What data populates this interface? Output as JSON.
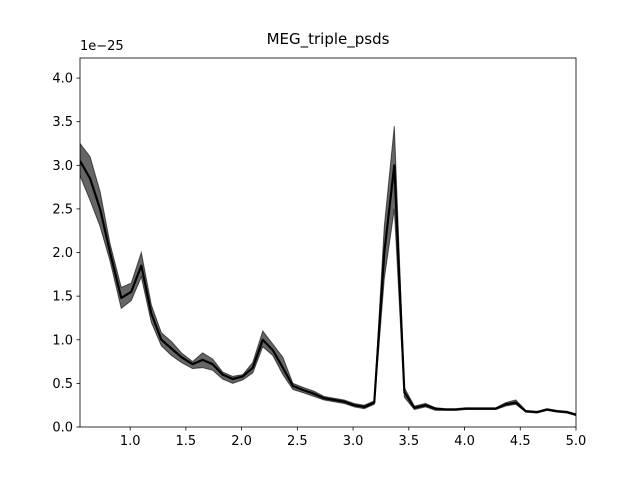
{
  "chart_data": {
    "type": "line",
    "title": "MEG_triple_psds",
    "y_offset_label": "1e−25",
    "x": [
      0.55,
      0.64,
      0.73,
      0.82,
      0.92,
      1.01,
      1.1,
      1.19,
      1.28,
      1.37,
      1.46,
      1.56,
      1.65,
      1.74,
      1.83,
      1.92,
      2.01,
      2.1,
      2.19,
      2.28,
      2.37,
      2.46,
      2.56,
      2.65,
      2.74,
      2.83,
      2.92,
      3.01,
      3.1,
      3.19,
      3.28,
      3.37,
      3.46,
      3.55,
      3.65,
      3.74,
      3.83,
      3.92,
      4.01,
      4.1,
      4.19,
      4.28,
      4.37,
      4.46,
      4.55,
      4.65,
      4.74,
      4.83,
      4.92,
      5.0
    ],
    "series": [
      {
        "color": "#000000",
        "values": [
          3.05,
          2.85,
          2.5,
          2.0,
          1.48,
          1.55,
          1.85,
          1.3,
          1.0,
          0.9,
          0.8,
          0.72,
          0.77,
          0.72,
          0.6,
          0.55,
          0.58,
          0.68,
          1.0,
          0.88,
          0.68,
          0.47,
          0.42,
          0.38,
          0.33,
          0.31,
          0.29,
          0.25,
          0.23,
          0.28,
          2.0,
          3.0,
          0.4,
          0.22,
          0.25,
          0.21,
          0.2,
          0.2,
          0.21,
          0.21,
          0.21,
          0.21,
          0.26,
          0.28,
          0.18,
          0.17,
          0.2,
          0.18,
          0.17,
          0.14
        ]
      }
    ],
    "band": {
      "color": "#000000",
      "alpha": 0.6,
      "upper": [
        3.25,
        3.1,
        2.7,
        2.1,
        1.6,
        1.65,
        2.0,
        1.4,
        1.08,
        0.98,
        0.85,
        0.75,
        0.85,
        0.78,
        0.63,
        0.58,
        0.6,
        0.74,
        1.1,
        0.95,
        0.8,
        0.5,
        0.45,
        0.41,
        0.35,
        0.33,
        0.31,
        0.27,
        0.25,
        0.3,
        2.3,
        3.45,
        0.45,
        0.24,
        0.27,
        0.22,
        0.21,
        0.21,
        0.22,
        0.22,
        0.22,
        0.22,
        0.28,
        0.31,
        0.19,
        0.18,
        0.21,
        0.19,
        0.18,
        0.15
      ],
      "lower": [
        2.88,
        2.6,
        2.3,
        1.9,
        1.36,
        1.45,
        1.72,
        1.2,
        0.93,
        0.82,
        0.74,
        0.67,
        0.68,
        0.65,
        0.55,
        0.5,
        0.54,
        0.62,
        0.92,
        0.82,
        0.6,
        0.43,
        0.39,
        0.35,
        0.31,
        0.29,
        0.27,
        0.23,
        0.21,
        0.26,
        1.7,
        2.5,
        0.34,
        0.2,
        0.23,
        0.19,
        0.19,
        0.19,
        0.2,
        0.2,
        0.2,
        0.2,
        0.24,
        0.26,
        0.17,
        0.16,
        0.19,
        0.17,
        0.16,
        0.13
      ]
    },
    "xlim": [
      0.55,
      5.0
    ],
    "ylim": [
      0,
      4.23
    ],
    "xticks": [
      {
        "value": 1,
        "label": "1.0"
      },
      {
        "value": 1.5,
        "label": "1.5"
      },
      {
        "value": 2,
        "label": "2.0"
      },
      {
        "value": 2.5,
        "label": "2.5"
      },
      {
        "value": 3,
        "label": "3.0"
      },
      {
        "value": 3.5,
        "label": "3.5"
      },
      {
        "value": 4,
        "label": "4.0"
      },
      {
        "value": 4.5,
        "label": "4.5"
      },
      {
        "value": 5,
        "label": "5.0"
      }
    ],
    "yticks": [
      {
        "value": 0,
        "label": "0.0"
      },
      {
        "value": 0.5,
        "label": "0.5"
      },
      {
        "value": 1,
        "label": "1.0"
      },
      {
        "value": 1.5,
        "label": "1.5"
      },
      {
        "value": 2,
        "label": "2.0"
      },
      {
        "value": 2.5,
        "label": "2.5"
      },
      {
        "value": 3,
        "label": "3.0"
      },
      {
        "value": 3.5,
        "label": "3.5"
      },
      {
        "value": 4,
        "label": "4.0"
      }
    ],
    "grid": false
  }
}
